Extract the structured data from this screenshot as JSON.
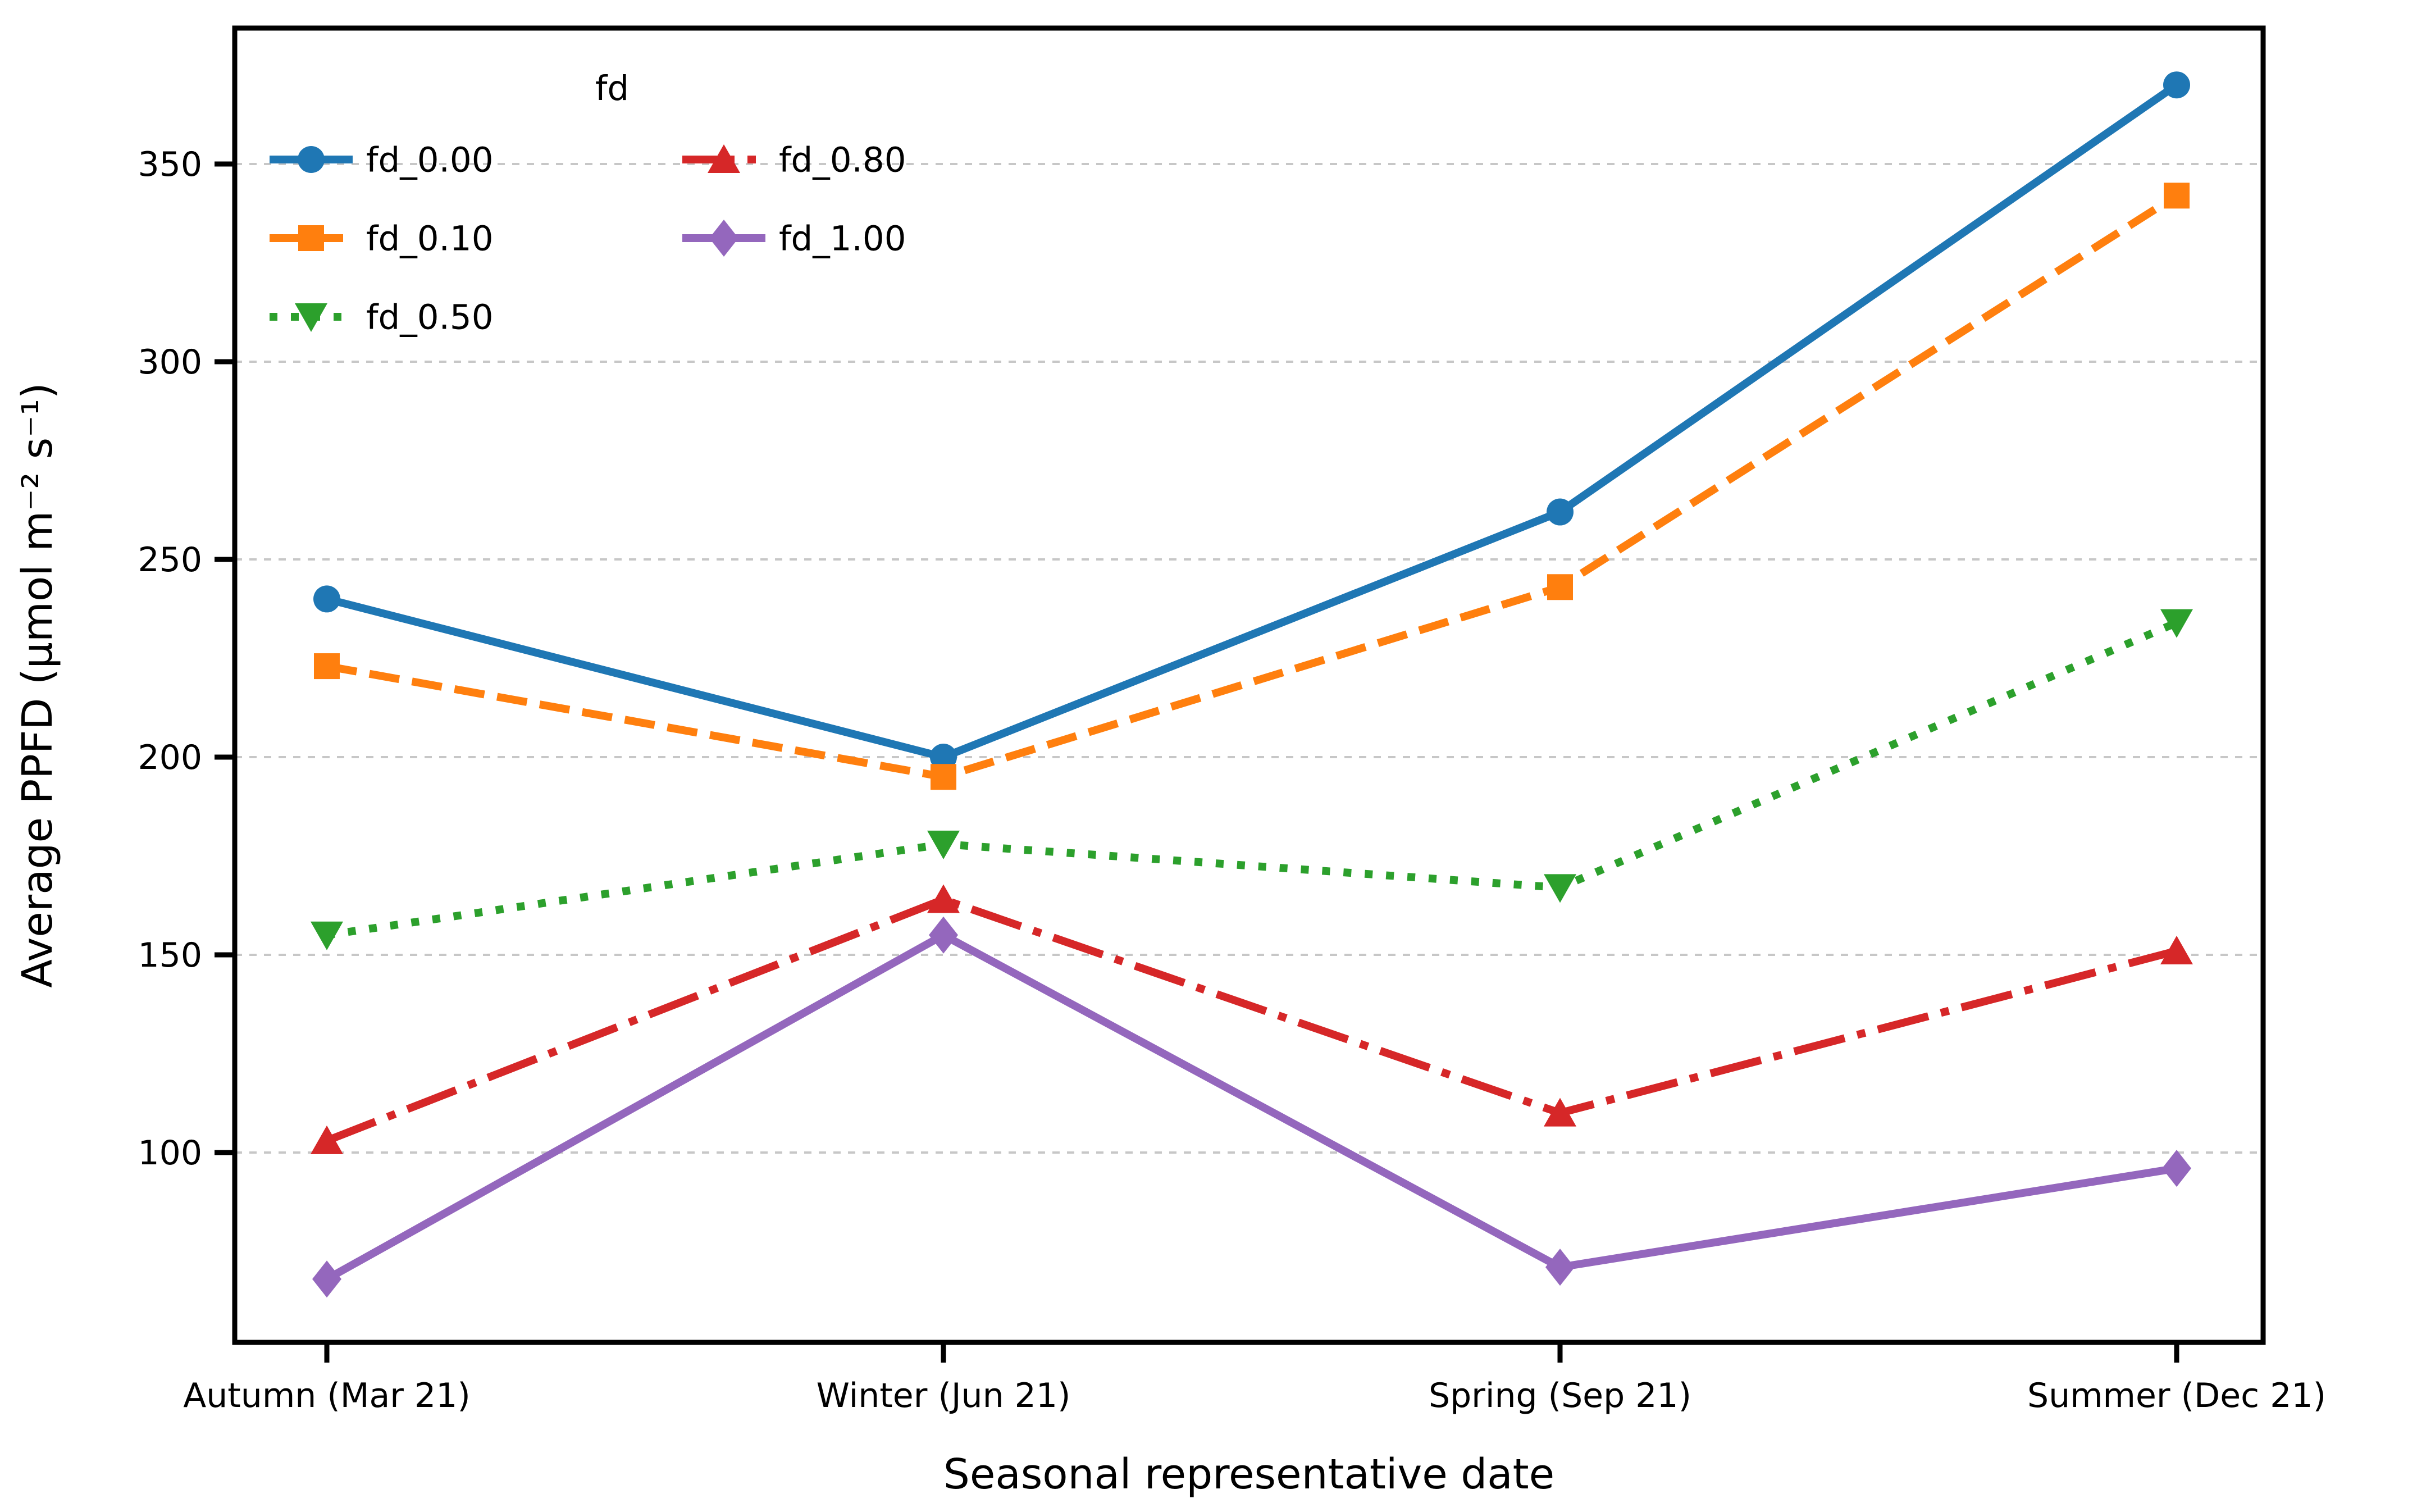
{
  "chart_data": {
    "type": "line",
    "title": "",
    "xlabel": "Seasonal representative date",
    "ylabel": "Average PPFD (μmol m⁻² s⁻¹)",
    "categories": [
      "Autumn (Mar 21)",
      "Winter (Jun 21)",
      "Spring (Sep 21)",
      "Summer (Dec 21)"
    ],
    "yticks": [
      350,
      300,
      250,
      200,
      150,
      100
    ],
    "ylim": [
      52,
      383
    ],
    "grid": "horizontal, dashed light gray",
    "legend": {
      "title": "fd",
      "position": "upper-left",
      "columns": 2,
      "frame": false,
      "column1": [
        "fd_0.00",
        "fd_0.10",
        "fd_0.50"
      ],
      "column2": [
        "fd_0.80",
        "fd_1.00"
      ]
    },
    "series": [
      {
        "name": "fd_0.00",
        "color": "#1f77b4",
        "linestyle": "solid",
        "marker": "circle",
        "values": [
          240,
          200,
          262,
          370
        ]
      },
      {
        "name": "fd_0.10",
        "color": "#ff7f0e",
        "linestyle": "dashed",
        "marker": "square",
        "values": [
          223,
          195,
          243,
          342
        ]
      },
      {
        "name": "fd_0.50",
        "color": "#2ca02c",
        "linestyle": "dotted",
        "marker": "triangle-down",
        "values": [
          155,
          178,
          167,
          234
        ]
      },
      {
        "name": "fd_0.80",
        "color": "#d62728",
        "linestyle": "dashdot",
        "marker": "triangle-up",
        "values": [
          103,
          164,
          110,
          151
        ]
      },
      {
        "name": "fd_1.00",
        "color": "#9467bd",
        "linestyle": "solid",
        "marker": "diamond",
        "values": [
          68,
          155,
          71,
          96
        ]
      }
    ],
    "colors": {
      "grid": "#c7c7c7",
      "spine": "#000000",
      "background": "#ffffff"
    }
  }
}
